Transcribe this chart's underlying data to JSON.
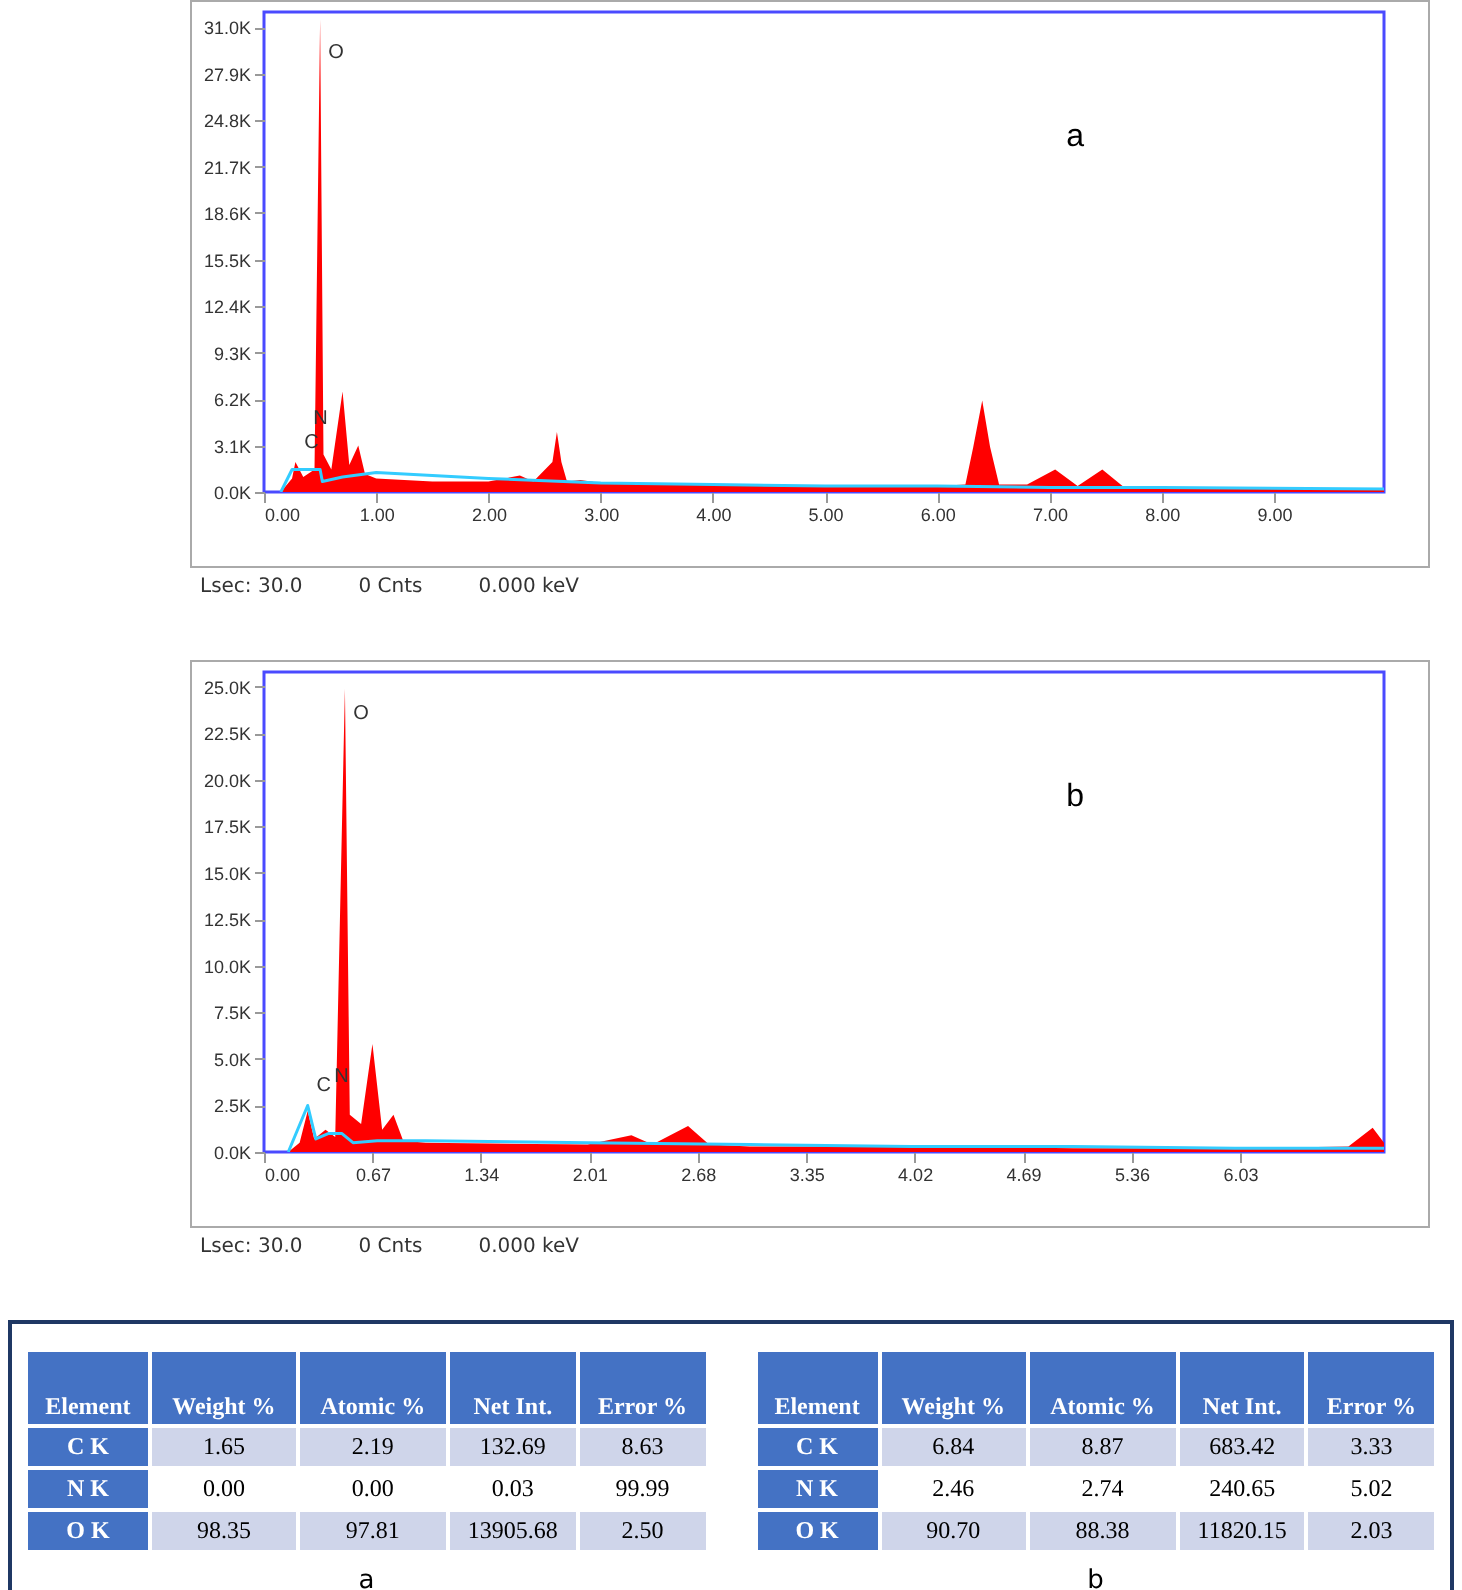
{
  "chart_data": [
    {
      "type": "area",
      "title": "a",
      "xlim": [
        0,
        9.98
      ],
      "ylim": [
        0,
        32000
      ],
      "xticks": [
        {
          "value": 0,
          "label": "0.00"
        },
        {
          "value": 1,
          "label": "1.00"
        },
        {
          "value": 2,
          "label": "2.00"
        },
        {
          "value": 3,
          "label": "3.00"
        },
        {
          "value": 4,
          "label": "4.00"
        },
        {
          "value": 5,
          "label": "5.00"
        },
        {
          "value": 6,
          "label": "6.00"
        },
        {
          "value": 7,
          "label": "7.00"
        },
        {
          "value": 8,
          "label": "8.00"
        },
        {
          "value": 9,
          "label": "9.00"
        }
      ],
      "yticks": [
        {
          "value": 0,
          "label": "0.0K"
        },
        {
          "value": 3100,
          "label": "3.1K"
        },
        {
          "value": 6200,
          "label": "6.2K"
        },
        {
          "value": 9300,
          "label": "9.3K"
        },
        {
          "value": 12400,
          "label": "12.4K"
        },
        {
          "value": 15500,
          "label": "15.5K"
        },
        {
          "value": 18600,
          "label": "18.6K"
        },
        {
          "value": 21700,
          "label": "21.7K"
        },
        {
          "value": 24800,
          "label": "24.8K"
        },
        {
          "value": 27900,
          "label": "27.9K"
        },
        {
          "value": 31000,
          "label": "31.0K"
        }
      ],
      "series": [
        {
          "type": "area",
          "color": "#ff0000",
          "x": [
            0.15,
            0.25,
            0.28,
            0.35,
            0.45,
            0.5,
            0.53,
            0.6,
            0.7,
            0.76,
            0.84,
            0.9,
            1.0,
            1.5,
            2.0,
            2.28,
            2.4,
            2.57,
            2.61,
            2.65,
            2.7,
            2.82,
            3.0,
            4.0,
            5.0,
            6.0,
            6.25,
            6.32,
            6.4,
            6.47,
            6.55,
            6.8,
            7.05,
            7.25,
            7.47,
            7.65,
            8.0,
            9.0,
            9.98
          ],
          "values": [
            0,
            900,
            2000,
            1000,
            1500,
            31500,
            2500,
            1500,
            6700,
            1800,
            3100,
            1200,
            900,
            700,
            700,
            1100,
            700,
            2000,
            4000,
            2000,
            700,
            800,
            600,
            500,
            400,
            400,
            500,
            3000,
            6100,
            3000,
            500,
            500,
            1500,
            400,
            1500,
            400,
            300,
            300,
            200
          ]
        },
        {
          "type": "line",
          "color": "#33ccff",
          "x": [
            0.15,
            0.25,
            0.35,
            0.5,
            0.52,
            0.7,
            1.0,
            1.5,
            2.0,
            3.0,
            4.0,
            5.0,
            6.0,
            7.0,
            8.0,
            9.98
          ],
          "values": [
            0,
            1500,
            1500,
            1500,
            700,
            1000,
            1300,
            1100,
            900,
            600,
            500,
            400,
            400,
            300,
            300,
            200
          ]
        }
      ],
      "annotations": [
        {
          "text": "C",
          "x": 0.28,
          "y": 2000
        },
        {
          "text": "N",
          "x": 0.36,
          "y": 3600
        },
        {
          "text": "O",
          "x": 0.5,
          "y": 28000
        },
        "Lsec: 30.0",
        "0 Cnts",
        "0.000 keV"
      ]
    },
    {
      "type": "area",
      "title": "b",
      "xlim": [
        0,
        6.92
      ],
      "ylim": [
        0,
        25800
      ],
      "xticks": [
        {
          "value": 0,
          "label": "0.00"
        },
        0.67,
        1.34,
        2.01,
        2.68,
        3.35,
        4.02,
        4.69,
        5.36,
        6.03
      ],
      "yticks": [
        {
          "value": 0,
          "label": "0.0K"
        },
        {
          "value": 2500,
          "label": "2.5K"
        },
        {
          "value": 5000,
          "label": "5.0K"
        },
        {
          "value": 7500,
          "label": "7.5K"
        },
        {
          "value": 10000,
          "label": "10.0K"
        },
        {
          "value": 12500,
          "label": "12.5K"
        },
        {
          "value": 15000,
          "label": "15.0K"
        },
        {
          "value": 17500,
          "label": "17.5K"
        },
        {
          "value": 20000,
          "label": "20.0K"
        },
        {
          "value": 22500,
          "label": "22.5K"
        },
        {
          "value": 25000,
          "label": "25.0K"
        }
      ],
      "series": [
        {
          "type": "area",
          "color": "#ff0000",
          "x": [
            0.15,
            0.22,
            0.27,
            0.31,
            0.38,
            0.44,
            0.5,
            0.53,
            0.6,
            0.67,
            0.73,
            0.8,
            0.86,
            1.0,
            2.0,
            2.27,
            2.4,
            2.62,
            2.75,
            3.0,
            4.0,
            5.0,
            6.0,
            6.7,
            6.85,
            6.92
          ],
          "values": [
            0,
            500,
            2200,
            700,
            1200,
            800,
            24900,
            2000,
            1500,
            5800,
            1200,
            2000,
            600,
            500,
            400,
            900,
            400,
            1400,
            400,
            300,
            300,
            200,
            200,
            300,
            1300,
            500
          ]
        },
        {
          "type": "line",
          "color": "#33ccff",
          "x": [
            0.15,
            0.27,
            0.32,
            0.4,
            0.48,
            0.55,
            0.7,
            1.0,
            2.0,
            3.0,
            4.0,
            5.0,
            6.0,
            6.92
          ],
          "values": [
            0,
            2500,
            700,
            1000,
            1000,
            500,
            600,
            600,
            500,
            400,
            300,
            300,
            200,
            200
          ]
        }
      ],
      "annotations": [
        {
          "text": "C",
          "x": 0.27,
          "y": 2500
        },
        {
          "text": "N",
          "x": 0.38,
          "y": 3000
        },
        {
          "text": "O",
          "x": 0.5,
          "y": 22500
        },
        "Lsec: 30.0",
        "0 Cnts",
        "0.000 keV"
      ]
    },
    {
      "type": "other",
      "categories": [
        "Element",
        "Weight %",
        "Atomic %",
        "Net Int.",
        "Error %"
      ],
      "y_categories": [
        "C K",
        "N K",
        "O K"
      ],
      "cell_labels": [
        [
          "1.65",
          "2.19",
          "132.69",
          "8.63"
        ],
        [
          "0.00",
          "0.00",
          "0.03",
          "99.99"
        ],
        [
          "98.35",
          "97.81",
          "13905.68",
          "2.50"
        ]
      ],
      "annotations": [
        "a"
      ]
    },
    {
      "type": "other",
      "categories": [
        "Element",
        "Weight %",
        "Atomic %",
        "Net Int.",
        "Error %"
      ],
      "y_categories": [
        "C K",
        "N K",
        "O K"
      ],
      "cell_labels": [
        [
          "6.84",
          "8.87",
          "683.42",
          "3.33"
        ],
        [
          "2.46",
          "2.74",
          "240.65",
          "5.02"
        ],
        [
          "90.70",
          "88.38",
          "11820.15",
          "2.03"
        ]
      ],
      "annotations": [
        "b"
      ]
    }
  ]
}
